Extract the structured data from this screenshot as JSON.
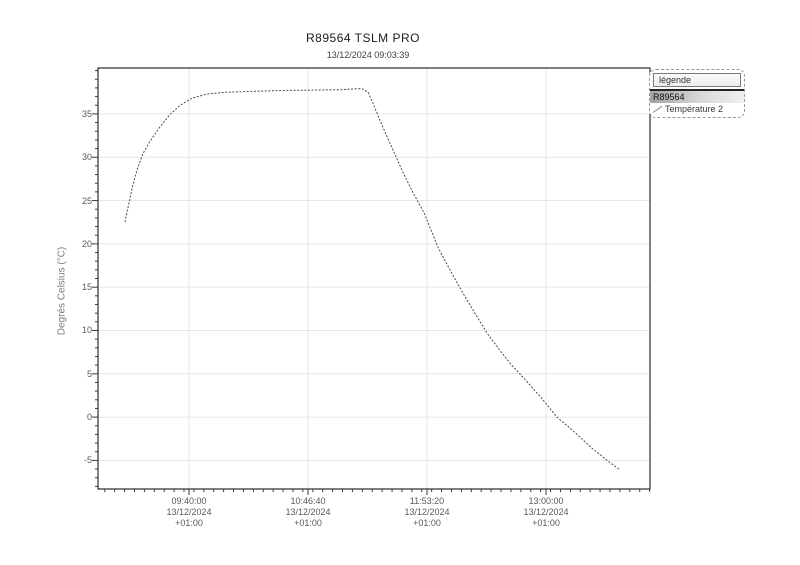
{
  "page": {
    "background": "#ffffff"
  },
  "legend": {
    "header": "légende",
    "device": "R89564",
    "series_label": "Température 2",
    "marker_icon": "line-marker"
  },
  "chart_data": {
    "type": "line",
    "title": "R89564 TSLM PRO",
    "subtitle": "13/12/2024 09:03:39",
    "xlabel": "",
    "ylabel": "Degrés Celsius (°C)",
    "grid": true,
    "colors": {
      "curve": "#4a4a4a",
      "grid": "#e6e6e6",
      "axis": "#000000",
      "tick": "#3a3a3a"
    },
    "x_axis": {
      "min_seconds": 31741,
      "max_seconds": 50296,
      "minor_tick_step_seconds": 333,
      "major_ticks": [
        {
          "seconds": 34800,
          "time": "09:40:00",
          "date": "13/12/2024",
          "utc_offset": "+01:00"
        },
        {
          "seconds": 38800,
          "time": "10:46:40",
          "date": "13/12/2024",
          "utc_offset": "+01:00"
        },
        {
          "seconds": 42800,
          "time": "11:53:20",
          "date": "13/12/2024",
          "utc_offset": "+01:00"
        },
        {
          "seconds": 46800,
          "time": "13:00:00",
          "date": "13/12/2024",
          "utc_offset": "+01:00"
        }
      ]
    },
    "y_axis": {
      "min": -8.3,
      "max": 40.3,
      "major_ticks": [
        -5,
        0,
        5,
        10,
        15,
        20,
        25,
        30,
        35
      ],
      "minor_step": 1
    },
    "series": [
      {
        "name": "Température 2",
        "unit": "°C",
        "points": [
          [
            32649,
            22.5
          ],
          [
            32720,
            23.7
          ],
          [
            32800,
            25.0
          ],
          [
            32900,
            26.6
          ],
          [
            33050,
            28.5
          ],
          [
            33250,
            30.4
          ],
          [
            33500,
            31.9
          ],
          [
            33800,
            33.4
          ],
          [
            34150,
            34.9
          ],
          [
            34500,
            36.0
          ],
          [
            34900,
            36.8
          ],
          [
            35400,
            37.3
          ],
          [
            36000,
            37.5
          ],
          [
            36900,
            37.6
          ],
          [
            37900,
            37.7
          ],
          [
            38900,
            37.75
          ],
          [
            39900,
            37.8
          ],
          [
            40400,
            37.9
          ],
          [
            40620,
            37.9
          ],
          [
            40820,
            37.5
          ],
          [
            41000,
            36.1
          ],
          [
            41200,
            34.4
          ],
          [
            41430,
            32.6
          ],
          [
            41700,
            30.5
          ],
          [
            42000,
            28.2
          ],
          [
            42330,
            25.9
          ],
          [
            42700,
            23.6
          ],
          [
            43170,
            19.6
          ],
          [
            43570,
            17.0
          ],
          [
            44010,
            14.3
          ],
          [
            44410,
            12.0
          ],
          [
            44820,
            9.7
          ],
          [
            45250,
            7.7
          ],
          [
            45620,
            6.1
          ],
          [
            46030,
            4.6
          ],
          [
            46600,
            2.4
          ],
          [
            47170,
            0.0
          ],
          [
            47780,
            -1.8
          ],
          [
            48350,
            -3.6
          ],
          [
            48850,
            -5.0
          ],
          [
            49290,
            -6.1
          ]
        ]
      }
    ]
  }
}
